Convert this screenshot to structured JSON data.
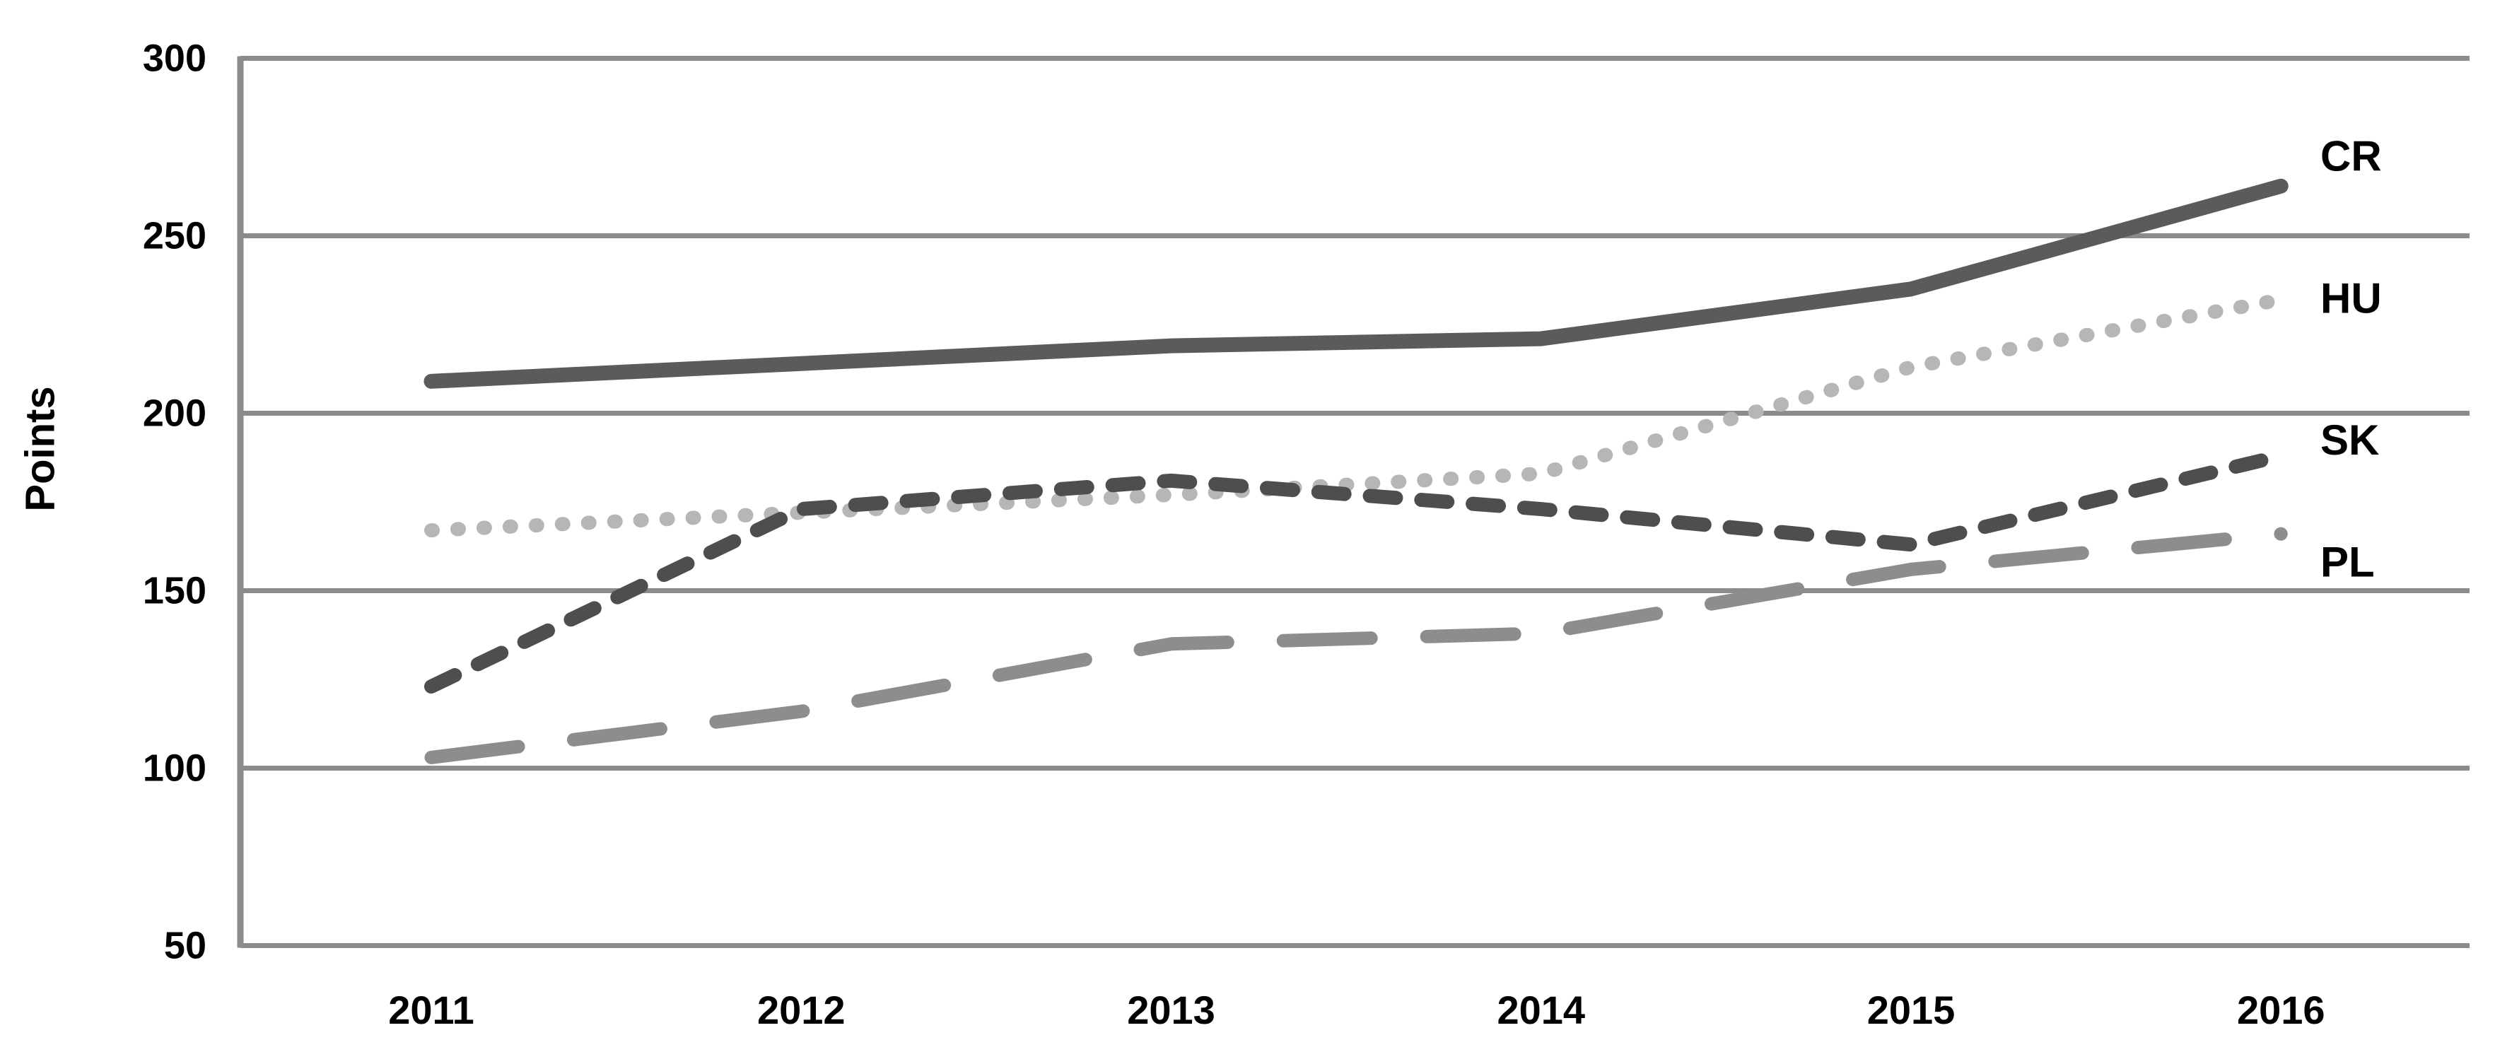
{
  "chart_data": {
    "type": "line",
    "title": "",
    "ylabel": "Points",
    "xlabel": "",
    "categories": [
      "2011",
      "2012",
      "2013",
      "2014",
      "2015",
      "2016"
    ],
    "series": [
      {
        "name": "CR",
        "label": "CR",
        "values": [
          209,
          214,
          219,
          221,
          235,
          264
        ],
        "style": "solid",
        "color": "#5b5b5b"
      },
      {
        "name": "HU",
        "label": "HU",
        "values": [
          167,
          172,
          177,
          183,
          213,
          232
        ],
        "style": "dotted",
        "color": "#b6b6b6"
      },
      {
        "name": "SK",
        "label": "SK",
        "values": [
          123,
          173,
          181,
          173,
          163,
          188
        ],
        "style": "dashed",
        "color": "#4e4e4e"
      },
      {
        "name": "PL",
        "label": "PL",
        "values": [
          103,
          116,
          135,
          138,
          156,
          166
        ],
        "style": "long-dash",
        "color": "#8d8d8d"
      }
    ],
    "ylim": [
      50,
      300
    ],
    "yticks": [
      50,
      100,
      150,
      200,
      250,
      300
    ],
    "grid": "horizontal",
    "gridline_color": "#8b8b8b",
    "axis_color": "#8b8b8b",
    "legend_position": "right-end-labels"
  }
}
